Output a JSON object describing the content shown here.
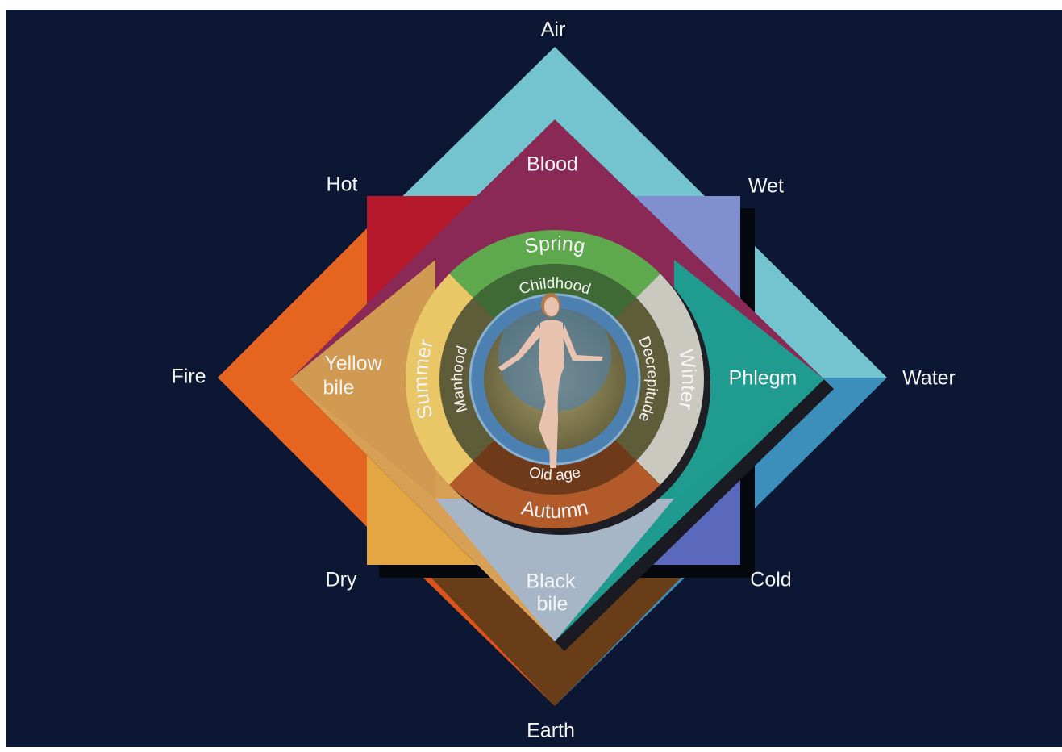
{
  "elements": {
    "air": "Air",
    "water": "Water",
    "earth": "Earth",
    "fire": "Fire"
  },
  "qualities": {
    "hot": "Hot",
    "wet": "Wet",
    "dry": "Dry",
    "cold": "Cold"
  },
  "humours": {
    "blood": "Blood",
    "yellow_bile": [
      "Yellow",
      "bile"
    ],
    "phlegm": "Phlegm",
    "black_bile": [
      "Black",
      "bile"
    ]
  },
  "seasons": {
    "spring": "Spring",
    "summer": "Summer",
    "winter": "Winter",
    "autumn": "Autumn"
  },
  "ages": {
    "childhood": "Childhood",
    "manhood": "Manhood",
    "decrepitude": "Decrepitude",
    "old_age": "Old age"
  }
}
